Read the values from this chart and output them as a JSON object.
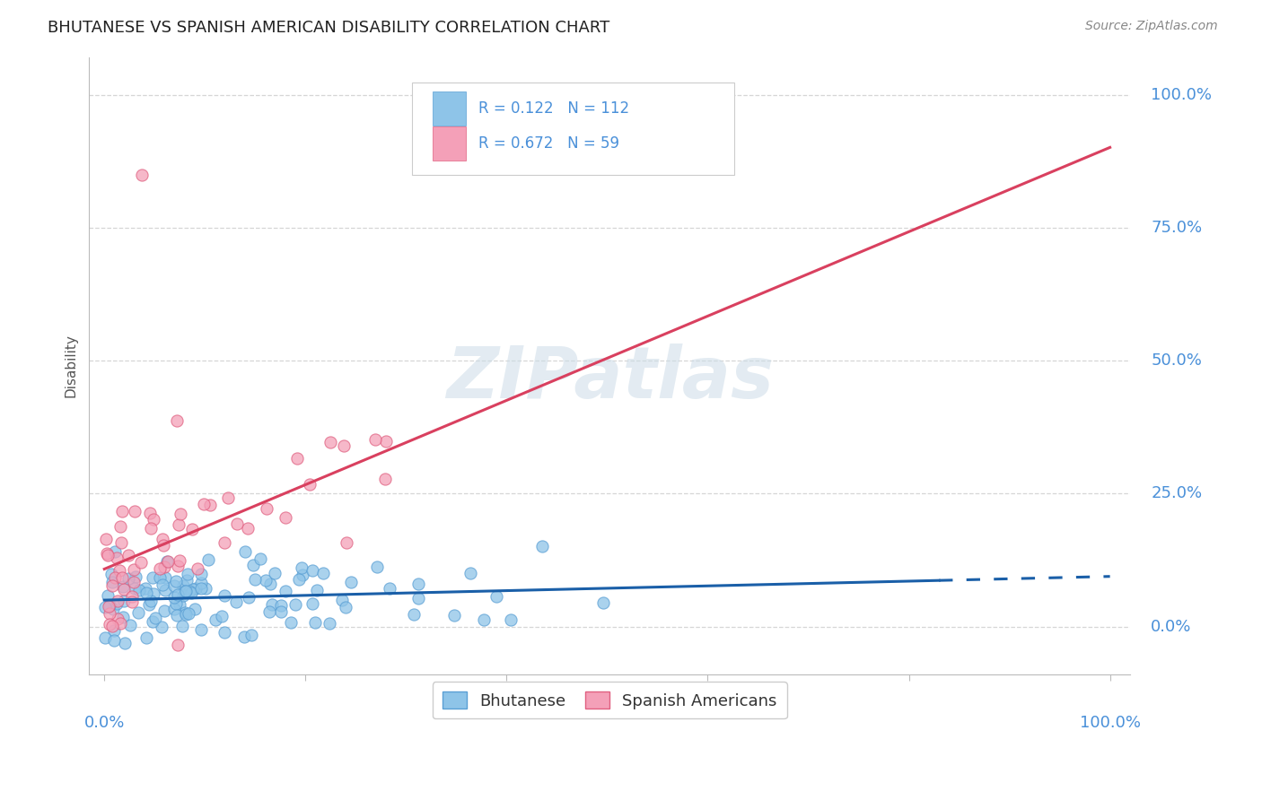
{
  "title": "BHUTANESE VS SPANISH AMERICAN DISABILITY CORRELATION CHART",
  "source": "Source: ZipAtlas.com",
  "ylabel": "Disability",
  "ytick_labels": [
    "0.0%",
    "25.0%",
    "50.0%",
    "75.0%",
    "100.0%"
  ],
  "ytick_values": [
    0.0,
    0.25,
    0.5,
    0.75,
    1.0
  ],
  "bhutanese_R": 0.122,
  "bhutanese_N": 112,
  "spanish_R": 0.672,
  "spanish_N": 59,
  "bhutanese_color": "#8ec4e8",
  "bhutanese_edge": "#5a9fd4",
  "spanish_color": "#f4a0b8",
  "spanish_edge": "#e06080",
  "regression_blue": "#1a5fa8",
  "regression_pink": "#d9405f",
  "background_color": "#ffffff",
  "grid_color": "#cccccc",
  "title_color": "#222222",
  "axis_label_color": "#4a90d9",
  "legend_text_color": "#4a90d9",
  "watermark_color": "#ccdce8",
  "watermark_text": "ZIPatlas",
  "legend_label_blue": "Bhutanese",
  "legend_label_pink": "Spanish Americans"
}
